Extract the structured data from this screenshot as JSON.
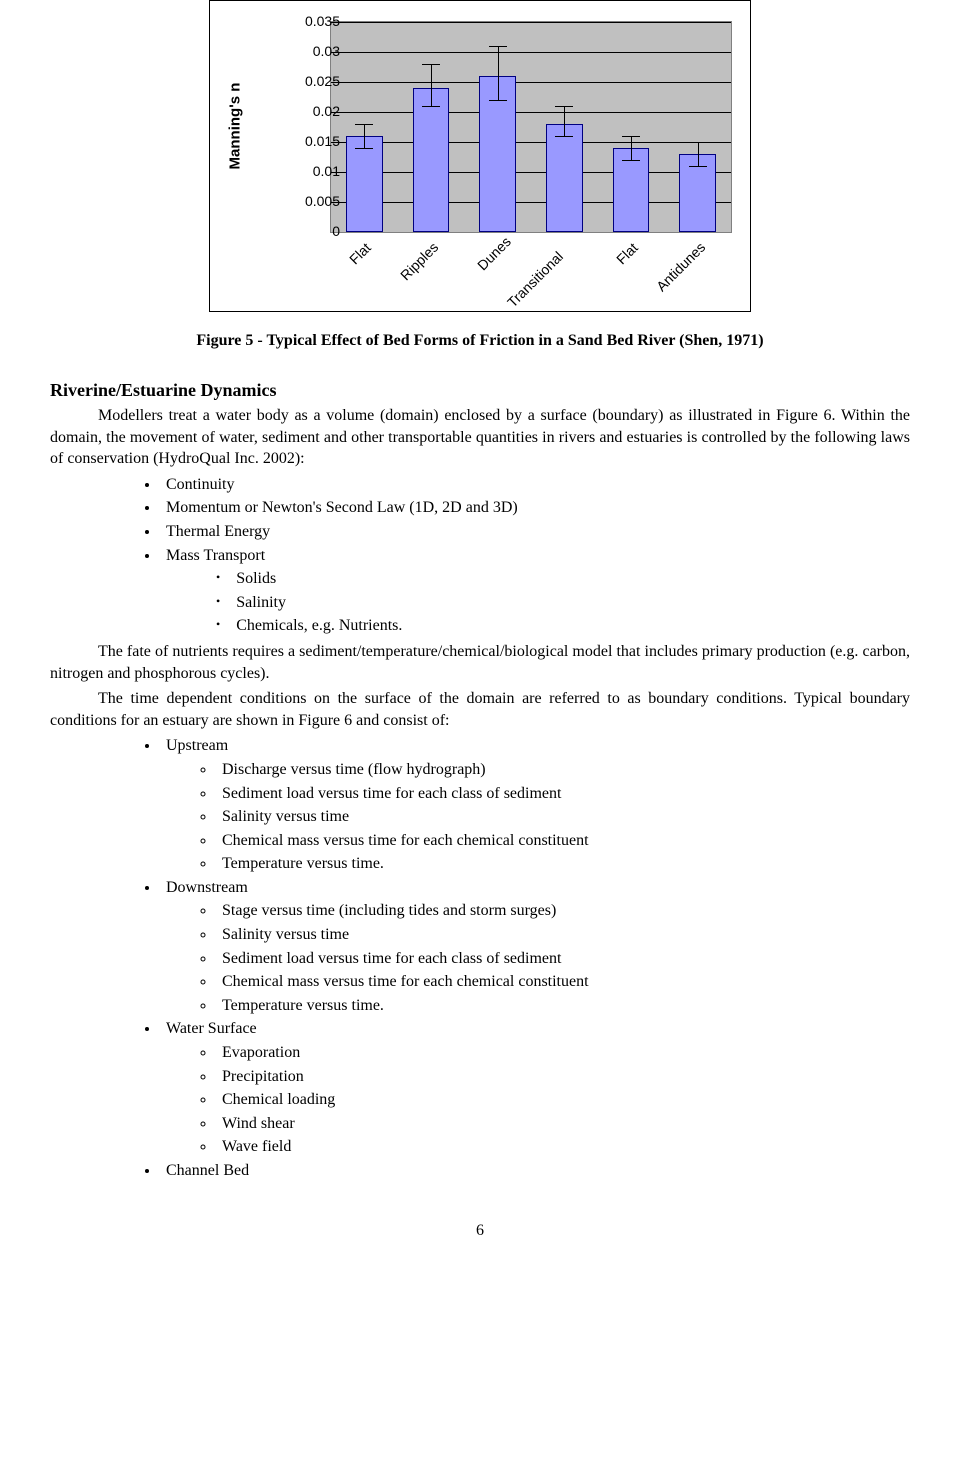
{
  "chart": {
    "type": "bar",
    "ylabel": "Manning's n",
    "ylim": [
      0,
      0.035
    ],
    "ytick_step": 0.005,
    "yticks": [
      "0",
      "0.005",
      "0.01",
      "0.015",
      "0.02",
      "0.025",
      "0.03",
      "0.035"
    ],
    "categories": [
      "Flat",
      "Ripples",
      "Dunes",
      "Transitional",
      "Flat",
      "Antidunes"
    ],
    "values": [
      0.016,
      0.024,
      0.026,
      0.018,
      0.014,
      0.013
    ],
    "err_low": [
      0.014,
      0.021,
      0.022,
      0.016,
      0.012,
      0.011
    ],
    "err_high": [
      0.018,
      0.028,
      0.031,
      0.021,
      0.016,
      0.015
    ],
    "bar_fill": "#9999ff",
    "bar_border": "#000080",
    "plot_bg": "#c0c0c0",
    "grid_color": "#000000",
    "font_family": "Arial",
    "ylabel_fontsize": 15,
    "tick_fontsize": 14
  },
  "caption": "Figure 5 - Typical Effect of Bed Forms of Friction in a Sand Bed River (Shen, 1971)",
  "section_heading": "Riverine/Estuarine Dynamics",
  "para1": "Modellers treat a water body as a volume (domain) enclosed by a surface (boundary) as illustrated in Figure 6. Within the domain, the movement of water, sediment and other transportable quantities in rivers and estuaries is controlled by the following laws of conservation (HydroQual Inc. 2002):",
  "laws": [
    "Continuity",
    "Momentum or Newton's Second Law (1D, 2D and 3D)",
    "Thermal Energy",
    "Mass Transport"
  ],
  "mass_sub": [
    "Solids",
    "Salinity",
    "Chemicals, e.g. Nutrients."
  ],
  "para2": "The fate of nutrients requires a sediment/temperature/chemical/biological model that includes primary production (e.g. carbon, nitrogen and phosphorous cycles).",
  "para3": "The time dependent conditions on the surface of the domain are referred to as boundary conditions. Typical boundary conditions for an estuary are shown in Figure 6 and consist of:",
  "bc": {
    "upstream_label": "Upstream",
    "upstream": [
      "Discharge versus time (flow hydrograph)",
      "Sediment load versus time for each class of sediment",
      "Salinity versus time",
      "Chemical mass versus time for each chemical constituent",
      "Temperature versus time."
    ],
    "downstream_label": "Downstream",
    "downstream": [
      "Stage versus time (including tides and storm surges)",
      "Salinity versus time",
      "Sediment load versus time for each class of sediment",
      "Chemical mass versus time for each chemical constituent",
      "Temperature versus time."
    ],
    "surface_label": "Water Surface",
    "surface": [
      "Evaporation",
      "Precipitation",
      "Chemical loading",
      "Wind shear",
      "Wave field"
    ],
    "bed_label": "Channel Bed"
  },
  "page_number": "6"
}
